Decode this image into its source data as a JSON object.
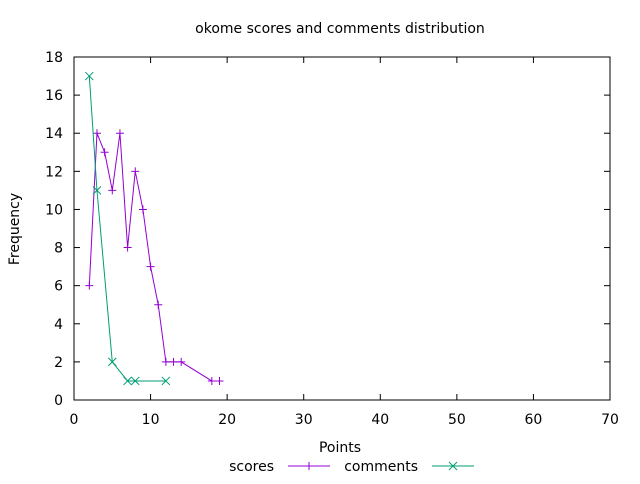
{
  "chart_data": {
    "type": "line",
    "title": "okome scores and comments distribution",
    "xlabel": "Points",
    "ylabel": "Frequency",
    "xlim": [
      0,
      70
    ],
    "ylim": [
      0,
      18
    ],
    "x_ticks": [
      0,
      10,
      20,
      30,
      40,
      50,
      60,
      70
    ],
    "y_ticks": [
      0,
      2,
      4,
      6,
      8,
      10,
      12,
      14,
      16,
      18
    ],
    "grid": false,
    "legend_placement": "bottom-center",
    "series": [
      {
        "name": "scores",
        "color": "#9400d3",
        "marker": "plus",
        "x": [
          2,
          3,
          4,
          5,
          6,
          7,
          8,
          9,
          10,
          11,
          12,
          13,
          14,
          18,
          19
        ],
        "y": [
          6,
          14,
          13,
          11,
          14,
          8,
          12,
          10,
          7,
          5,
          2,
          2,
          2,
          1,
          1
        ]
      },
      {
        "name": "comments",
        "color": "#009e73",
        "marker": "cross",
        "x": [
          2,
          3,
          5,
          7,
          8,
          12
        ],
        "y": [
          17,
          11,
          2,
          1,
          1,
          1
        ]
      }
    ]
  }
}
